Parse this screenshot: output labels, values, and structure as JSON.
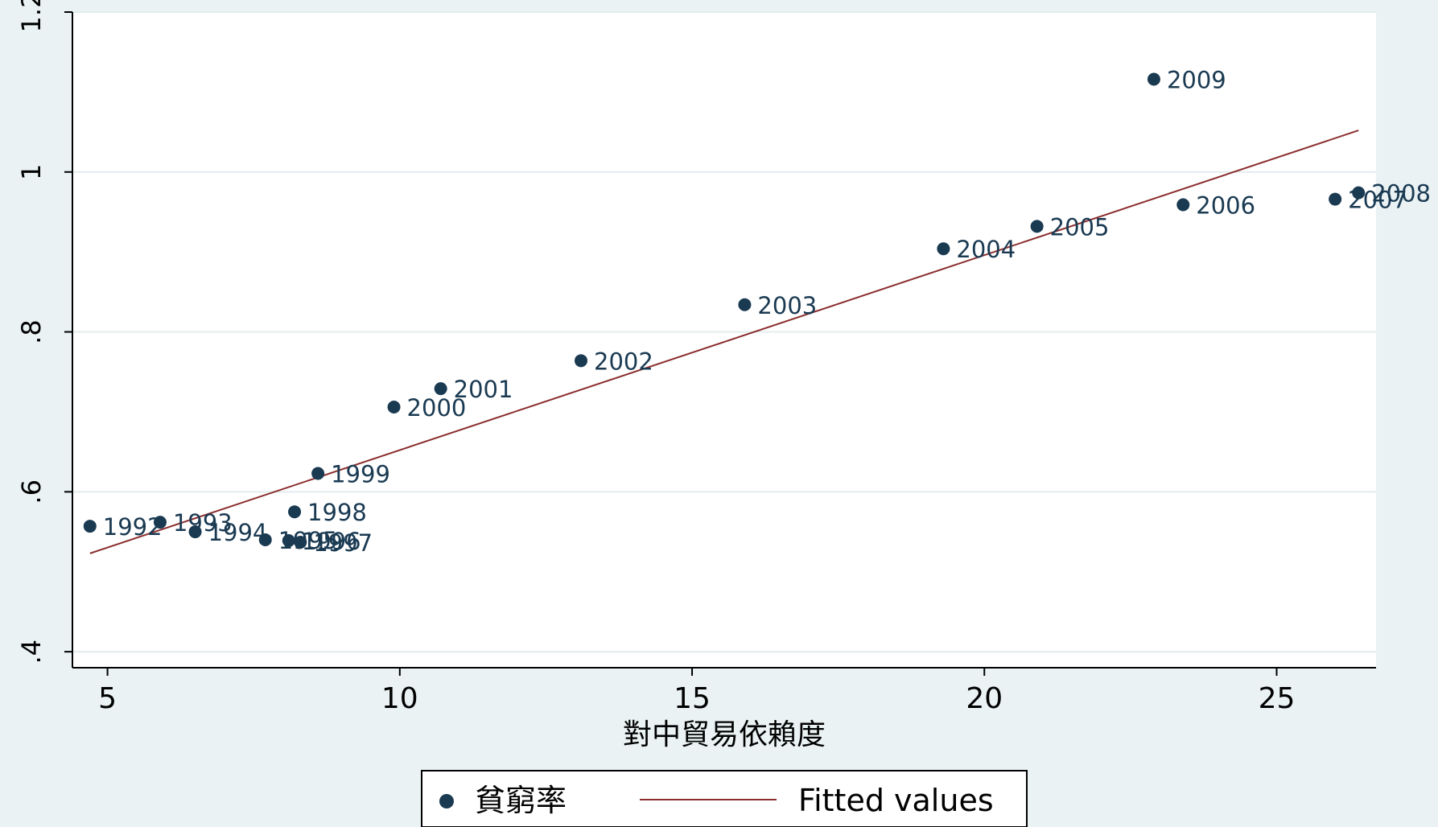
{
  "chart_data": {
    "type": "scatter",
    "xlabel": "對中貿易依賴度",
    "ylabel": "",
    "xlim": [
      4.4,
      26.7
    ],
    "ylim": [
      0.38,
      1.2
    ],
    "xticks": [
      5,
      10,
      15,
      20,
      25
    ],
    "yticks": [
      0.4,
      0.6,
      0.8,
      1.0,
      1.2
    ],
    "ytick_labels": [
      ".4",
      ".6",
      ".8",
      "1",
      "1.2"
    ],
    "grid": true,
    "legend_position": "bottom",
    "series": [
      {
        "name": "貧窮率",
        "type": "scatter",
        "color": "#1a3a52",
        "points": [
          {
            "label": "1992",
            "x": 4.7,
            "y": 0.557
          },
          {
            "label": "1993",
            "x": 5.9,
            "y": 0.562
          },
          {
            "label": "1994",
            "x": 6.5,
            "y": 0.55
          },
          {
            "label": "1995",
            "x": 7.7,
            "y": 0.54
          },
          {
            "label": "1996",
            "x": 8.1,
            "y": 0.539
          },
          {
            "label": "1997",
            "x": 8.3,
            "y": 0.537
          },
          {
            "label": "1998",
            "x": 8.2,
            "y": 0.575
          },
          {
            "label": "1999",
            "x": 8.6,
            "y": 0.623
          },
          {
            "label": "2000",
            "x": 9.9,
            "y": 0.706
          },
          {
            "label": "2001",
            "x": 10.7,
            "y": 0.729
          },
          {
            "label": "2002",
            "x": 13.1,
            "y": 0.764
          },
          {
            "label": "2003",
            "x": 15.9,
            "y": 0.834
          },
          {
            "label": "2004",
            "x": 19.3,
            "y": 0.904
          },
          {
            "label": "2005",
            "x": 20.9,
            "y": 0.932
          },
          {
            "label": "2006",
            "x": 23.4,
            "y": 0.959
          },
          {
            "label": "2007",
            "x": 26.0,
            "y": 0.966
          },
          {
            "label": "2008",
            "x": 26.4,
            "y": 0.974
          },
          {
            "label": "2009",
            "x": 22.9,
            "y": 1.116
          }
        ]
      },
      {
        "name": "Fitted values",
        "type": "line",
        "color": "#8b2e2e",
        "points": [
          {
            "x": 4.7,
            "y": 0.523
          },
          {
            "x": 26.4,
            "y": 1.052
          }
        ]
      }
    ]
  }
}
